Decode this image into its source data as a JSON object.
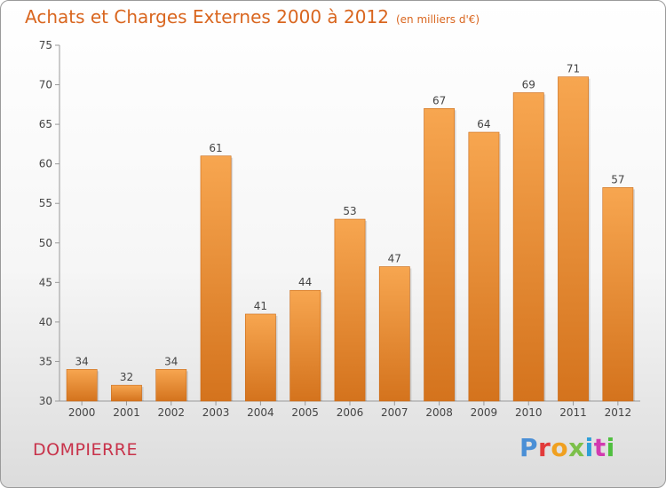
{
  "header": {
    "title": "Achats et Charges Externes 2000 à 2012",
    "subtitle": "(en milliers d'€)"
  },
  "footer": {
    "city": "DOMPIERRE",
    "logo_text": "Proxiti",
    "logo_colors": [
      "#4a8fd6",
      "#e23a3a",
      "#f0a020",
      "#7cc04a",
      "#2e9fd8",
      "#d23ab0",
      "#4fbf3f"
    ]
  },
  "chart_data": {
    "type": "bar",
    "categories": [
      "2000",
      "2001",
      "2002",
      "2003",
      "2004",
      "2005",
      "2006",
      "2007",
      "2008",
      "2009",
      "2010",
      "2011",
      "2012"
    ],
    "values": [
      34,
      32,
      34,
      61,
      41,
      44,
      53,
      47,
      67,
      64,
      69,
      71,
      57
    ],
    "title": "Achats et Charges Externes 2000 à 2012",
    "ylim": [
      30,
      75
    ],
    "yticks": [
      30,
      35,
      40,
      45,
      50,
      55,
      60,
      65,
      70,
      75
    ],
    "grid": false,
    "legend": "none",
    "bar_color_top": "#f7a650",
    "bar_color_bottom": "#d4731d",
    "axis_color": "#999999"
  }
}
